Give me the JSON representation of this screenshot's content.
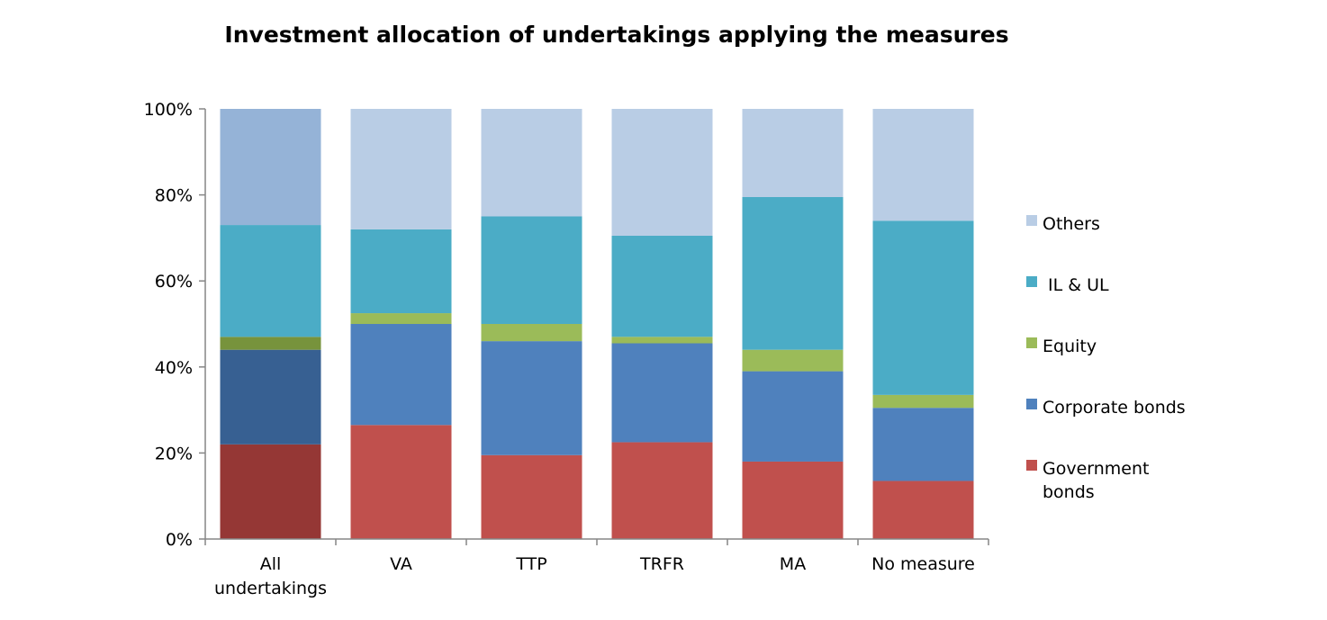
{
  "chart_data": {
    "type": "bar",
    "stacked": true,
    "title": "Investment allocation of undertakings applying the measures",
    "categories": [
      "All undertakings",
      "VA",
      "TTP",
      "TRFR",
      "MA",
      "No measure"
    ],
    "y_ticks": [
      "0%",
      "20%",
      "40%",
      "60%",
      "80%",
      "100%"
    ],
    "ylim": [
      0,
      100
    ],
    "unit": "%",
    "legend_position": "right",
    "series": [
      {
        "name": "Government bonds",
        "values": [
          22,
          26.5,
          19.5,
          22.5,
          18,
          13.5
        ],
        "color": "#c0504d"
      },
      {
        "name": "Corporate bonds",
        "values": [
          22,
          23.5,
          26.5,
          23,
          21,
          17
        ],
        "color": "#4f81bd"
      },
      {
        "name": "Equity",
        "values": [
          3,
          2.5,
          4,
          1.5,
          5,
          3
        ],
        "color": "#9bbb59"
      },
      {
        "name": " IL & UL",
        "values": [
          26,
          19.5,
          25,
          23.5,
          35.5,
          40.5
        ],
        "color": "#4bacc6"
      },
      {
        "name": "Others",
        "values": [
          27,
          28,
          25,
          29.5,
          20.5,
          26
        ],
        "color": "#b9cde5"
      }
    ],
    "first_bar_colors": [
      "#953735",
      "#376092",
      "#77933c",
      "#4bacc6",
      "#95b3d7"
    ]
  }
}
